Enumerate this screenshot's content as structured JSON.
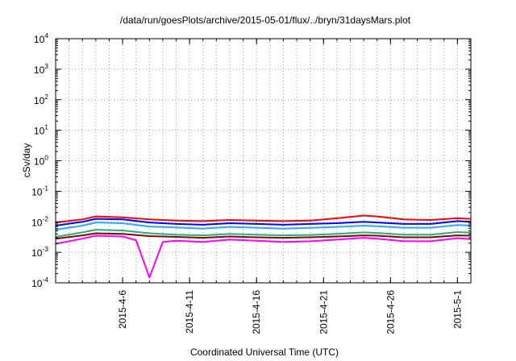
{
  "chart_data": {
    "type": "line",
    "title": "/data/run/goesPlots/archive/2015-05-01/flux/../bryn/31daysMars.plot",
    "xlabel": "Coordinated Universal Time (UTC)",
    "ylabel": "cSv/day",
    "y_scale": "log",
    "ylim": [
      0.0001,
      10000
    ],
    "y_tick_base": "10",
    "y_tick_exponents": [
      "-4",
      "-3",
      "-2",
      "-1",
      "0",
      "1",
      "2",
      "3",
      "4"
    ],
    "xlim": [
      "2015-04-01",
      "2015-05-02"
    ],
    "x_ticks": [
      {
        "date": "2015-04-06",
        "label": "2015-4-6"
      },
      {
        "date": "2015-04-11",
        "label": "2015-4-11"
      },
      {
        "date": "2015-04-16",
        "label": "2015-4-16"
      },
      {
        "date": "2015-04-21",
        "label": "2015-4-21"
      },
      {
        "date": "2015-04-26",
        "label": "2015-4-26"
      },
      {
        "date": "2015-05-01",
        "label": "2015-5-1"
      }
    ],
    "grid": true,
    "grid_style": "dotted",
    "series": [
      {
        "color": "#ff0000",
        "values": [
          {
            "x": "2015-04-01",
            "y": 0.0095
          },
          {
            "x": "2015-04-03",
            "y": 0.012
          },
          {
            "x": "2015-04-04",
            "y": 0.015
          },
          {
            "x": "2015-04-06",
            "y": 0.014
          },
          {
            "x": "2015-04-08",
            "y": 0.012
          },
          {
            "x": "2015-04-10",
            "y": 0.011
          },
          {
            "x": "2015-04-12",
            "y": 0.0105
          },
          {
            "x": "2015-04-14",
            "y": 0.0115
          },
          {
            "x": "2015-04-16",
            "y": 0.011
          },
          {
            "x": "2015-04-18",
            "y": 0.0105
          },
          {
            "x": "2015-04-20",
            "y": 0.011
          },
          {
            "x": "2015-04-22",
            "y": 0.013
          },
          {
            "x": "2015-04-24",
            "y": 0.016
          },
          {
            "x": "2015-04-25",
            "y": 0.015
          },
          {
            "x": "2015-04-27",
            "y": 0.012
          },
          {
            "x": "2015-04-29",
            "y": 0.0115
          },
          {
            "x": "2015-05-01",
            "y": 0.013
          },
          {
            "x": "2015-05-02",
            "y": 0.0125
          }
        ]
      },
      {
        "color": "#0000ff",
        "values": [
          {
            "x": "2015-04-01",
            "y": 0.0075
          },
          {
            "x": "2015-04-03",
            "y": 0.01
          },
          {
            "x": "2015-04-04",
            "y": 0.0125
          },
          {
            "x": "2015-04-06",
            "y": 0.012
          },
          {
            "x": "2015-04-08",
            "y": 0.0095
          },
          {
            "x": "2015-04-10",
            "y": 0.0085
          },
          {
            "x": "2015-04-12",
            "y": 0.008
          },
          {
            "x": "2015-04-14",
            "y": 0.009
          },
          {
            "x": "2015-04-16",
            "y": 0.0085
          },
          {
            "x": "2015-04-18",
            "y": 0.008
          },
          {
            "x": "2015-04-20",
            "y": 0.0085
          },
          {
            "x": "2015-04-22",
            "y": 0.009
          },
          {
            "x": "2015-04-24",
            "y": 0.01
          },
          {
            "x": "2015-04-25",
            "y": 0.0095
          },
          {
            "x": "2015-04-27",
            "y": 0.0085
          },
          {
            "x": "2015-04-29",
            "y": 0.0085
          },
          {
            "x": "2015-05-01",
            "y": 0.0105
          },
          {
            "x": "2015-05-02",
            "y": 0.01
          }
        ]
      },
      {
        "color": "#2ca8ff",
        "values": [
          {
            "x": "2015-04-01",
            "y": 0.0055
          },
          {
            "x": "2015-04-03",
            "y": 0.0075
          },
          {
            "x": "2015-04-04",
            "y": 0.0095
          },
          {
            "x": "2015-04-06",
            "y": 0.009
          },
          {
            "x": "2015-04-08",
            "y": 0.007
          },
          {
            "x": "2015-04-10",
            "y": 0.0065
          },
          {
            "x": "2015-04-12",
            "y": 0.006
          },
          {
            "x": "2015-04-14",
            "y": 0.0068
          },
          {
            "x": "2015-04-16",
            "y": 0.0064
          },
          {
            "x": "2015-04-18",
            "y": 0.006
          },
          {
            "x": "2015-04-20",
            "y": 0.0063
          },
          {
            "x": "2015-04-22",
            "y": 0.0068
          },
          {
            "x": "2015-04-24",
            "y": 0.0075
          },
          {
            "x": "2015-04-25",
            "y": 0.0072
          },
          {
            "x": "2015-04-27",
            "y": 0.0064
          },
          {
            "x": "2015-04-29",
            "y": 0.0064
          },
          {
            "x": "2015-05-01",
            "y": 0.0078
          },
          {
            "x": "2015-05-02",
            "y": 0.0075
          }
        ]
      },
      {
        "color": "#20b080",
        "values": [
          {
            "x": "2015-04-01",
            "y": 0.0032
          },
          {
            "x": "2015-04-03",
            "y": 0.0045
          },
          {
            "x": "2015-04-04",
            "y": 0.0055
          },
          {
            "x": "2015-04-06",
            "y": 0.0052
          },
          {
            "x": "2015-04-08",
            "y": 0.0042
          },
          {
            "x": "2015-04-10",
            "y": 0.0038
          },
          {
            "x": "2015-04-12",
            "y": 0.0036
          },
          {
            "x": "2015-04-14",
            "y": 0.004
          },
          {
            "x": "2015-04-16",
            "y": 0.0038
          },
          {
            "x": "2015-04-18",
            "y": 0.0036
          },
          {
            "x": "2015-04-20",
            "y": 0.0037
          },
          {
            "x": "2015-04-22",
            "y": 0.004
          },
          {
            "x": "2015-04-24",
            "y": 0.0045
          },
          {
            "x": "2015-04-25",
            "y": 0.0043
          },
          {
            "x": "2015-04-27",
            "y": 0.0038
          },
          {
            "x": "2015-04-29",
            "y": 0.0038
          },
          {
            "x": "2015-05-01",
            "y": 0.0046
          },
          {
            "x": "2015-05-02",
            "y": 0.0044
          }
        ]
      },
      {
        "color": "#8b0000",
        "values": [
          {
            "x": "2015-04-01",
            "y": 0.0028
          },
          {
            "x": "2015-04-03",
            "y": 0.0036
          },
          {
            "x": "2015-04-04",
            "y": 0.0042
          },
          {
            "x": "2015-04-06",
            "y": 0.004
          },
          {
            "x": "2015-04-08",
            "y": 0.0034
          },
          {
            "x": "2015-04-10",
            "y": 0.0032
          },
          {
            "x": "2015-04-12",
            "y": 0.003
          },
          {
            "x": "2015-04-14",
            "y": 0.0033
          },
          {
            "x": "2015-04-16",
            "y": 0.0031
          },
          {
            "x": "2015-04-18",
            "y": 0.003
          },
          {
            "x": "2015-04-20",
            "y": 0.0031
          },
          {
            "x": "2015-04-22",
            "y": 0.0033
          },
          {
            "x": "2015-04-24",
            "y": 0.0036
          },
          {
            "x": "2015-04-25",
            "y": 0.0035
          },
          {
            "x": "2015-04-27",
            "y": 0.0031
          },
          {
            "x": "2015-04-29",
            "y": 0.0031
          },
          {
            "x": "2015-05-01",
            "y": 0.0036
          },
          {
            "x": "2015-05-02",
            "y": 0.0035
          }
        ]
      },
      {
        "color": "#ff00ff",
        "values": [
          {
            "x": "2015-04-01",
            "y": 0.0019
          },
          {
            "x": "2015-04-03",
            "y": 0.0028
          },
          {
            "x": "2015-04-04",
            "y": 0.0035
          },
          {
            "x": "2015-04-06",
            "y": 0.0033
          },
          {
            "x": "2015-04-07",
            "y": 0.0025
          },
          {
            "x": "2015-04-08",
            "y": 0.00015
          },
          {
            "x": "2015-04-09",
            "y": 0.0022
          },
          {
            "x": "2015-04-10",
            "y": 0.0024
          },
          {
            "x": "2015-04-12",
            "y": 0.0022
          },
          {
            "x": "2015-04-14",
            "y": 0.0026
          },
          {
            "x": "2015-04-16",
            "y": 0.0024
          },
          {
            "x": "2015-04-18",
            "y": 0.0022
          },
          {
            "x": "2015-04-20",
            "y": 0.0023
          },
          {
            "x": "2015-04-22",
            "y": 0.0026
          },
          {
            "x": "2015-04-24",
            "y": 0.003
          },
          {
            "x": "2015-04-25",
            "y": 0.0028
          },
          {
            "x": "2015-04-27",
            "y": 0.0023
          },
          {
            "x": "2015-04-29",
            "y": 0.0023
          },
          {
            "x": "2015-05-01",
            "y": 0.0029
          },
          {
            "x": "2015-05-02",
            "y": 0.0027
          }
        ]
      }
    ]
  }
}
